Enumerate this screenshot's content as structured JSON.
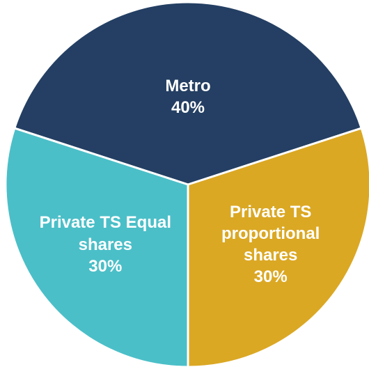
{
  "chart_data": {
    "type": "pie",
    "categories": [
      "Metro",
      "Private TS proportional shares",
      "Private TS Equal shares"
    ],
    "values": [
      40,
      30,
      30
    ],
    "value_labels": [
      "40%",
      "30%",
      "30%"
    ],
    "colors": [
      "#243f63",
      "#dba824",
      "#4bbfc8"
    ]
  }
}
